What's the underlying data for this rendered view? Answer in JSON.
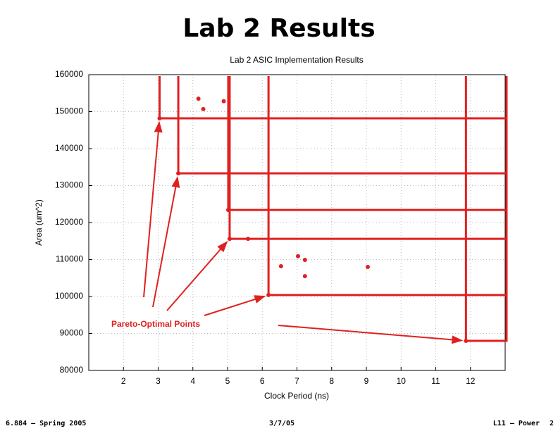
{
  "slide_title": "Lab 2 Results",
  "footer": {
    "left": "6.884 – Spring 2005",
    "center": "3/7/05",
    "right": "L11 – Power",
    "page": "2"
  },
  "chart_data": {
    "type": "scatter",
    "title": "Lab 2 ASIC Implementation Results",
    "x_label": "Clock Period (ns)",
    "y_label": "Area (um^2)",
    "annotation": "Pareto-Optimal Points",
    "xlim": [
      1,
      13
    ],
    "xticks": [
      2,
      3,
      4,
      5,
      6,
      7,
      8,
      9,
      10,
      11,
      12
    ],
    "ylim": [
      80000,
      160000
    ],
    "yticks": [
      80000,
      90000,
      100000,
      110000,
      120000,
      130000,
      140000,
      150000,
      160000
    ],
    "grid": true,
    "series": [
      {
        "color": "#e02020",
        "x": [
          3.04,
          3.58,
          5.02,
          5.06,
          6.18,
          11.87
        ],
        "values": [
          148200,
          133300,
          123400,
          115600,
          100400,
          88000
        ]
      },
      {
        "color": "#e02020",
        "x": [
          4.16,
          4.3,
          4.89,
          5.59,
          7.03,
          7.23,
          6.54,
          7.23,
          9.04
        ],
        "values": [
          153500,
          150700,
          152800,
          115600,
          110900,
          109900,
          108200,
          105500,
          108000
        ]
      }
    ]
  }
}
